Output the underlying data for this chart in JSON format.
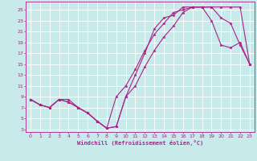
{
  "xlabel": "Windchill (Refroidissement éolien,°C)",
  "bg_color": "#c8eaea",
  "line_color": "#aa2288",
  "grid_color": "#ffffff",
  "xlim": [
    -0.5,
    23.5
  ],
  "ylim": [
    2.5,
    26.5
  ],
  "xticks": [
    0,
    1,
    2,
    3,
    4,
    5,
    6,
    7,
    8,
    9,
    10,
    11,
    12,
    13,
    14,
    15,
    16,
    17,
    18,
    19,
    20,
    21,
    22,
    23
  ],
  "yticks": [
    3,
    5,
    7,
    9,
    11,
    13,
    15,
    17,
    19,
    21,
    23,
    25
  ],
  "series": [
    {
      "x": [
        0,
        1,
        2,
        3,
        4,
        5,
        6,
        7,
        8,
        9,
        10,
        11,
        12,
        13,
        14,
        15,
        16,
        17,
        18,
        19,
        20,
        21,
        22,
        23
      ],
      "y": [
        8.5,
        7.5,
        7.0,
        8.5,
        8.5,
        7.0,
        6.0,
        4.5,
        3.2,
        3.5,
        9.0,
        13.0,
        17.0,
        21.5,
        23.5,
        24.0,
        25.5,
        25.5,
        25.5,
        25.5,
        25.5,
        25.5,
        25.5,
        15.0
      ]
    },
    {
      "x": [
        0,
        1,
        2,
        3,
        4,
        5,
        6,
        7,
        8,
        9,
        10,
        11,
        12,
        13,
        14,
        15,
        16,
        17,
        18,
        19,
        20,
        21,
        22,
        23
      ],
      "y": [
        8.5,
        7.5,
        7.0,
        8.5,
        8.0,
        7.0,
        6.0,
        4.5,
        3.2,
        9.0,
        11.0,
        14.0,
        17.5,
        20.5,
        22.5,
        24.5,
        25.0,
        25.5,
        25.5,
        23.0,
        18.5,
        18.0,
        19.0,
        15.0
      ]
    },
    {
      "x": [
        0,
        1,
        2,
        3,
        4,
        5,
        6,
        7,
        8,
        9,
        10,
        11,
        12,
        13,
        14,
        15,
        16,
        17,
        18,
        19,
        20,
        21,
        22,
        23
      ],
      "y": [
        8.5,
        7.5,
        7.0,
        8.5,
        8.0,
        7.0,
        6.0,
        4.5,
        3.2,
        3.5,
        9.0,
        11.0,
        14.5,
        17.5,
        20.0,
        22.0,
        24.5,
        25.5,
        25.5,
        25.5,
        23.5,
        22.5,
        18.5,
        15.0
      ]
    }
  ]
}
